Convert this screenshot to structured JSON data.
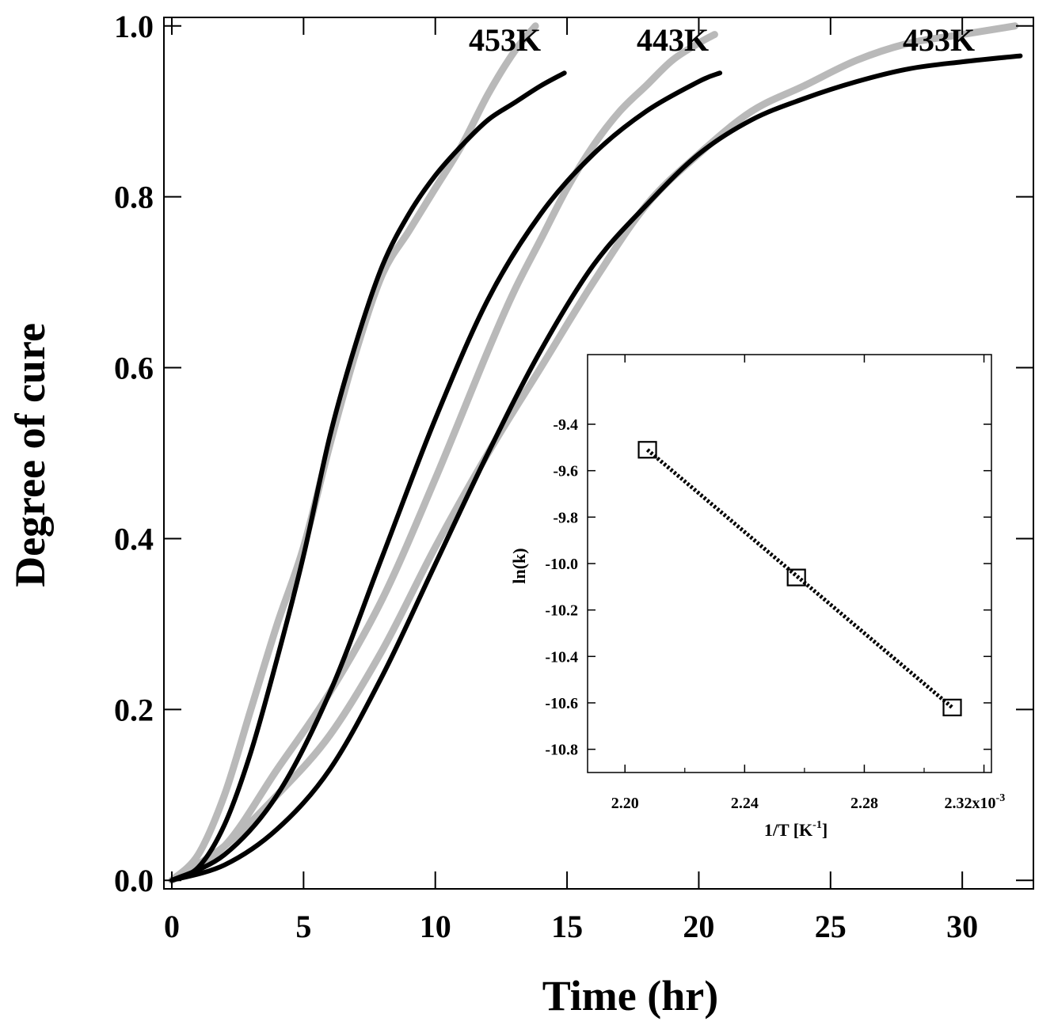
{
  "chart_data": [
    {
      "type": "line",
      "xlabel": "Time (hr)",
      "ylabel": "Degree of cure",
      "xlim": [
        -0.3,
        32.7
      ],
      "ylim": [
        -0.01,
        1.01
      ],
      "xticks": [
        0,
        5,
        10,
        15,
        20,
        25,
        30
      ],
      "xtick_labels": [
        "0",
        "5",
        "10",
        "15",
        "20",
        "25",
        "30"
      ],
      "yticks": [
        0.0,
        0.2,
        0.4,
        0.6,
        0.8,
        1.0
      ],
      "ytick_labels": [
        "0.0",
        "0.2",
        "0.4",
        "0.6",
        "0.8",
        "1.0"
      ],
      "grid": false,
      "curve_labels": [
        "453K",
        "443K",
        "433K"
      ],
      "series": [
        {
          "name": "453K",
          "style": "gray-experimental",
          "color": "#b9b9b9",
          "x": [
            0,
            1,
            2,
            3,
            4,
            5,
            6,
            7,
            8,
            9,
            10,
            11,
            12,
            13,
            13.8
          ],
          "y": [
            0.0,
            0.03,
            0.1,
            0.2,
            0.3,
            0.39,
            0.51,
            0.62,
            0.71,
            0.76,
            0.81,
            0.86,
            0.92,
            0.97,
            1.0
          ]
        },
        {
          "name": "453K",
          "style": "black-model",
          "color": "#000000",
          "x": [
            0,
            1,
            2,
            3,
            4,
            5,
            6,
            7,
            8,
            9,
            10,
            11,
            12,
            13,
            14,
            14.9
          ],
          "y": [
            0.0,
            0.015,
            0.065,
            0.15,
            0.26,
            0.38,
            0.52,
            0.63,
            0.72,
            0.78,
            0.825,
            0.86,
            0.89,
            0.91,
            0.93,
            0.945
          ]
        },
        {
          "name": "443K",
          "style": "gray-experimental",
          "color": "#b9b9b9",
          "x": [
            0,
            2,
            4,
            6,
            8,
            10,
            12,
            13,
            14,
            15,
            16,
            17,
            18,
            19,
            20,
            20.6
          ],
          "y": [
            0.0,
            0.04,
            0.13,
            0.22,
            0.33,
            0.47,
            0.62,
            0.69,
            0.75,
            0.81,
            0.86,
            0.9,
            0.93,
            0.96,
            0.98,
            0.99
          ]
        },
        {
          "name": "443K",
          "style": "black-model",
          "color": "#000000",
          "x": [
            0,
            2,
            4,
            6,
            8,
            10,
            12,
            14,
            16,
            18,
            20,
            20.8
          ],
          "y": [
            0.0,
            0.03,
            0.1,
            0.22,
            0.38,
            0.54,
            0.68,
            0.78,
            0.85,
            0.9,
            0.935,
            0.945
          ]
        },
        {
          "name": "433K",
          "style": "gray-experimental",
          "color": "#b9b9b9",
          "x": [
            0,
            2,
            4,
            6,
            8,
            10,
            12,
            14,
            16,
            18,
            20,
            22,
            24,
            26,
            28,
            30,
            32
          ],
          "y": [
            0.0,
            0.04,
            0.1,
            0.17,
            0.27,
            0.39,
            0.5,
            0.6,
            0.7,
            0.79,
            0.85,
            0.9,
            0.93,
            0.96,
            0.98,
            0.99,
            1.0
          ]
        },
        {
          "name": "433K",
          "style": "black-model",
          "color": "#000000",
          "x": [
            0,
            2,
            4,
            6,
            8,
            10,
            12,
            14,
            16,
            18,
            20,
            22,
            24,
            26,
            28,
            30,
            32.2
          ],
          "y": [
            0.0,
            0.018,
            0.06,
            0.13,
            0.24,
            0.37,
            0.5,
            0.62,
            0.72,
            0.79,
            0.85,
            0.89,
            0.915,
            0.935,
            0.95,
            0.958,
            0.965
          ]
        }
      ]
    },
    {
      "type": "scatter",
      "xlabel": "1/T [K",
      "xlabel_sup": "-1",
      "xlabel_end": "]",
      "ylabel": "ln(k)",
      "xlim": [
        2.1875,
        2.3225
      ],
      "ylim": [
        -10.9,
        -9.1
      ],
      "xticks": [
        2.2,
        2.24,
        2.28,
        2.32
      ],
      "xtick_labels": [
        "2.20",
        "2.24",
        "2.28",
        "2.32x10"
      ],
      "xtick_suffix_sup": "-3",
      "yticks": [
        -9.4,
        -9.6,
        -9.8,
        -10.0,
        -10.2,
        -10.4,
        -10.6,
        -10.8
      ],
      "ytick_labels": [
        "-9.4",
        "-9.6",
        "-9.8",
        "-10.0",
        "-10.2",
        "-10.4",
        "-10.6",
        "-10.8"
      ],
      "grid": false,
      "points": {
        "x": [
          2.2075,
          2.2573,
          2.3094
        ],
        "y": [
          -9.51,
          -10.06,
          -10.62
        ]
      },
      "fit_line": {
        "style": "dotted",
        "x": [
          2.2075,
          2.3094
        ],
        "y": [
          -9.51,
          -10.62
        ]
      }
    }
  ]
}
